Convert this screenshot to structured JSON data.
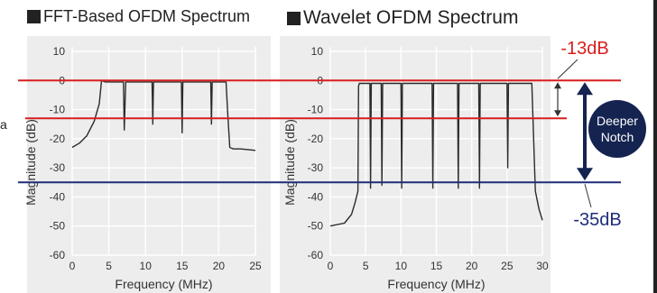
{
  "colors": {
    "reference_red": "#d81e1e",
    "reference_blue": "#1f2d7a",
    "trace": "#2b2b2b",
    "badge": "#14234f"
  },
  "figure": {
    "left_title": "FFT-Based OFDM Spectrum",
    "right_title": "Wavelet OFDM Spectrum",
    "stray_mark": "a",
    "annotation_top": "-13dB",
    "annotation_bottom": "-35dB",
    "badge_line1": "Deeper",
    "badge_line2": "Notch"
  },
  "chart_data": [
    {
      "type": "line",
      "title": "FFT-Based OFDM Spectrum",
      "xlabel": "Frequency (MHz)",
      "ylabel": "Magnitude (dB)",
      "xlim": [
        0,
        25
      ],
      "ylim": [
        -60,
        10
      ],
      "xticks": [
        0,
        5,
        10,
        15,
        20,
        25
      ],
      "yticks": [
        10,
        0,
        -10,
        -20,
        -30,
        -40,
        -50,
        -60
      ],
      "grid": true,
      "reference_lines_y": [
        0,
        -13,
        -35
      ],
      "series": [
        {
          "x": [
            0,
            1,
            2,
            3,
            3.7,
            4,
            4.5,
            5,
            6,
            7,
            7.1,
            7.3,
            7.5,
            10,
            10.9,
            11,
            11.1,
            13,
            14,
            14.9,
            15,
            15.1,
            17,
            18,
            18.9,
            19,
            19.1,
            21,
            21.2,
            21.5,
            22,
            23,
            25
          ],
          "y": [
            -23,
            -21.5,
            -19,
            -14,
            -8,
            0,
            -0.5,
            -0.5,
            -0.5,
            -0.5,
            -17,
            -0.5,
            -0.5,
            -0.5,
            -0.5,
            -15,
            -0.5,
            -0.5,
            -0.5,
            -0.5,
            -18,
            -0.5,
            -0.5,
            -0.5,
            -0.5,
            -15,
            -0.5,
            -0.5,
            -10,
            -23,
            -23.5,
            -23.5,
            -24
          ]
        }
      ]
    },
    {
      "type": "line",
      "title": "Wavelet OFDM Spectrum",
      "xlabel": "Frequency (MHz)",
      "ylabel": "Magnitude (dB)",
      "xlim": [
        0,
        30
      ],
      "ylim": [
        -60,
        10
      ],
      "xticks": [
        0,
        5,
        10,
        15,
        20,
        25,
        30
      ],
      "yticks": [
        10,
        0,
        -10,
        -20,
        -30,
        -40,
        -50,
        -60
      ],
      "grid": true,
      "reference_lines_y": [
        0,
        -13,
        -35
      ],
      "series": [
        {
          "x": [
            0,
            2,
            3,
            3.5,
            3.9,
            4.0,
            4.1,
            5.0,
            5.6,
            5.7,
            5.8,
            7.2,
            7.3,
            7.4,
            10,
            10.1,
            10.2,
            14.4,
            14.5,
            14.6,
            18.0,
            18.1,
            18.2,
            21.0,
            21.1,
            21.2,
            25,
            25.1,
            25.2,
            28.5,
            29,
            29.5,
            30
          ],
          "y": [
            -50,
            -49,
            -46,
            -42,
            -38,
            -2,
            -1,
            -1,
            -1,
            -37,
            -1,
            -1,
            -36,
            -1,
            -1,
            -37,
            -1,
            -1,
            -37,
            -1,
            -1,
            -37,
            -1,
            -1,
            -37,
            -1,
            -1,
            -30,
            -1,
            -1,
            -38,
            -44,
            -48
          ]
        }
      ]
    }
  ]
}
